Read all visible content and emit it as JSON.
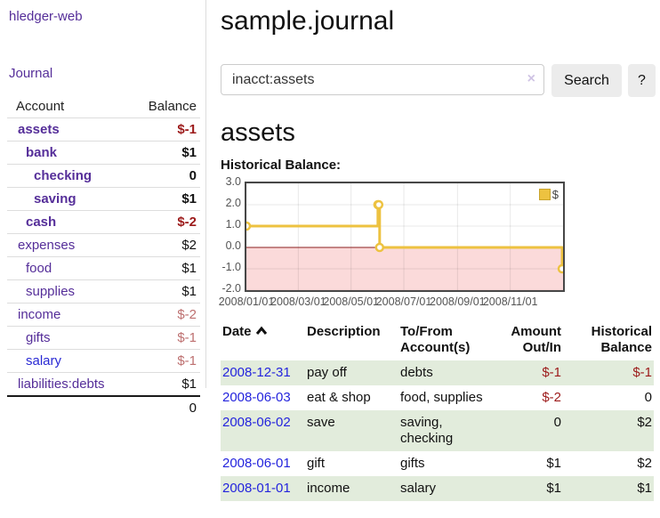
{
  "sidebar": {
    "brand": "hledger-web",
    "nav": {
      "journal": "Journal"
    },
    "accounts_table": {
      "col_account": "Account",
      "col_balance": "Balance"
    },
    "accounts": [
      {
        "name": "assets",
        "depth": 0,
        "bold": true,
        "balance": "$-1",
        "balance_tone": "negative-strong"
      },
      {
        "name": "bank",
        "depth": 1,
        "bold": true,
        "balance": "$1",
        "balance_tone": "normal"
      },
      {
        "name": "checking",
        "depth": 2,
        "bold": true,
        "balance": "0",
        "balance_tone": "normal"
      },
      {
        "name": "saving",
        "depth": 2,
        "bold": true,
        "balance": "$1",
        "balance_tone": "normal"
      },
      {
        "name": "cash",
        "depth": 1,
        "bold": true,
        "balance": "$-2",
        "balance_tone": "negative-strong"
      },
      {
        "name": "expenses",
        "depth": 0,
        "bold": false,
        "balance": "$2",
        "balance_tone": "normal"
      },
      {
        "name": "food",
        "depth": 1,
        "bold": false,
        "balance": "$1",
        "balance_tone": "normal"
      },
      {
        "name": "supplies",
        "depth": 1,
        "bold": false,
        "balance": "$1",
        "balance_tone": "normal"
      },
      {
        "name": "income",
        "depth": 0,
        "bold": false,
        "balance": "$-2",
        "balance_tone": "negative-soft"
      },
      {
        "name": "gifts",
        "depth": 1,
        "bold": false,
        "balance": "$-1",
        "balance_tone": "negative-soft"
      },
      {
        "name": "salary",
        "depth": 1,
        "bold": false,
        "balance": "$-1",
        "balance_tone": "negative-soft"
      },
      {
        "name": "liabilities:debts",
        "depth": 0,
        "bold": false,
        "balance": "$1",
        "balance_tone": "normal"
      }
    ],
    "total": "0"
  },
  "header": {
    "title": "sample.journal"
  },
  "search": {
    "value": "inacct:assets",
    "clear_icon": "×",
    "search_button": "Search",
    "help_button": "?"
  },
  "account_page": {
    "heading": "assets",
    "chart_label": "Historical Balance:"
  },
  "chart_data": {
    "type": "line",
    "step": true,
    "title": "Historical Balance:",
    "legend": {
      "label": "$",
      "position": "top-right"
    },
    "series": [
      {
        "name": "$",
        "color": "#EDC240",
        "points": [
          [
            "2008-01-01",
            1
          ],
          [
            "2008-06-01",
            2
          ],
          [
            "2008-06-02",
            2
          ],
          [
            "2008-06-03",
            0
          ],
          [
            "2008-12-31",
            -1
          ]
        ]
      }
    ],
    "xrange": [
      "2008-01-01",
      "2009-01-01"
    ],
    "ylim": [
      -2,
      3
    ],
    "yticks": [
      {
        "v": 3,
        "label": "3.0"
      },
      {
        "v": 2,
        "label": "2.0"
      },
      {
        "v": 1,
        "label": "1.0"
      },
      {
        "v": 0,
        "label": "0.0"
      },
      {
        "v": -1,
        "label": "-1.0"
      },
      {
        "v": -2,
        "label": "-2.0"
      }
    ],
    "xticks": [
      {
        "date": "2008-01-01",
        "label": "2008/01/01"
      },
      {
        "date": "2008-03-01",
        "label": "2008/03/01"
      },
      {
        "date": "2008-05-01",
        "label": "2008/05/01"
      },
      {
        "date": "2008-07-01",
        "label": "2008/07/01"
      },
      {
        "date": "2008-09-01",
        "label": "2008/09/01"
      },
      {
        "date": "2008-11-01",
        "label": "2008/11/01"
      }
    ],
    "grid": true,
    "colors": {
      "negative_fill": "#fbdada",
      "zero_line": "#8b1d1d",
      "grid": "rgba(0,0,0,0.09)",
      "border": "#474747"
    }
  },
  "register": {
    "headers": {
      "date": "Date",
      "description": "Description",
      "accounts": "To/From\nAccount(s)",
      "amount": "Amount\nOut/In",
      "balance": "Historical\nBalance"
    },
    "rows": [
      {
        "date": "2008-12-31",
        "description": "pay off",
        "accounts": "debts",
        "amount": "$-1",
        "balance": "$-1"
      },
      {
        "date": "2008-06-03",
        "description": "eat & shop",
        "accounts": "food, supplies",
        "amount": "$-2",
        "balance": "0"
      },
      {
        "date": "2008-06-02",
        "description": "save",
        "accounts": "saving, checking",
        "amount": "0",
        "balance": "$2"
      },
      {
        "date": "2008-06-01",
        "description": "gift",
        "accounts": "gifts",
        "amount": "$1",
        "balance": "$2"
      },
      {
        "date": "2008-01-01",
        "description": "income",
        "accounts": "salary",
        "amount": "$1",
        "balance": "$1"
      }
    ]
  }
}
